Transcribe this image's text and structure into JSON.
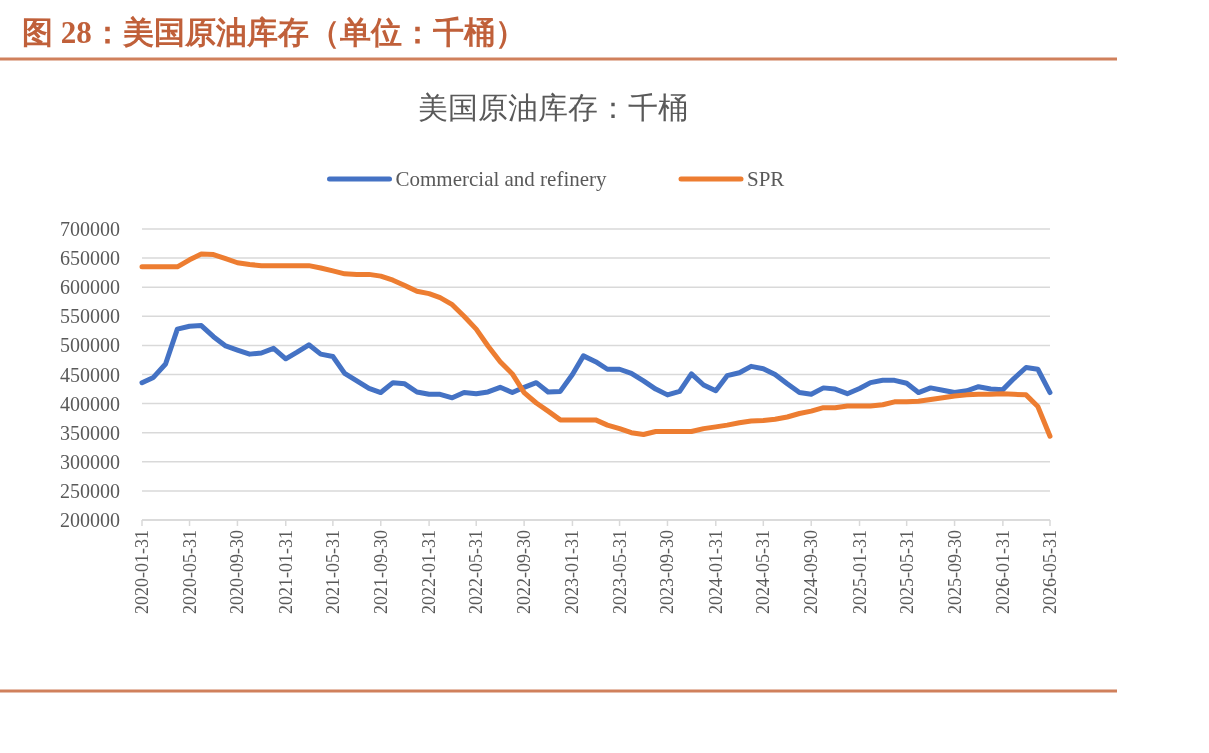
{
  "chart_data": {
    "type": "line",
    "title": "图 28：美国原油库存（单位：千桶）",
    "subtitle": "美国原油库存：千桶",
    "x": [
      "2020-01-31",
      "2020-02-29",
      "2020-03-31",
      "2020-04-30",
      "2020-05-31",
      "2020-06-30",
      "2020-07-31",
      "2020-08-31",
      "2020-09-30",
      "2020-10-31",
      "2020-11-30",
      "2020-12-31",
      "2021-01-31",
      "2021-02-28",
      "2021-03-31",
      "2021-04-30",
      "2021-05-31",
      "2021-06-30",
      "2021-07-31",
      "2021-08-31",
      "2021-09-30",
      "2021-10-31",
      "2021-11-30",
      "2021-12-31",
      "2022-01-31",
      "2022-02-28",
      "2022-03-31",
      "2022-04-30",
      "2022-05-31",
      "2022-06-30",
      "2022-07-31",
      "2022-08-31",
      "2022-09-30",
      "2022-10-31",
      "2022-11-30",
      "2022-12-31",
      "2023-01-31",
      "2023-02-28",
      "2023-03-31",
      "2023-04-30",
      "2023-05-31",
      "2023-06-30",
      "2023-07-31",
      "2023-08-31",
      "2023-09-30",
      "2023-10-31",
      "2023-11-30",
      "2023-12-31",
      "2024-01-31",
      "2024-02-29",
      "2024-03-31",
      "2024-04-30",
      "2024-05-31",
      "2024-06-30",
      "2024-07-31",
      "2024-08-31",
      "2024-09-30",
      "2024-10-31",
      "2024-11-30",
      "2024-12-31",
      "2025-01-31",
      "2025-02-28",
      "2025-03-31",
      "2025-04-30",
      "2025-05-31",
      "2025-06-30",
      "2025-07-31",
      "2025-08-31",
      "2025-09-30",
      "2025-10-31",
      "2025-11-30",
      "2025-12-31",
      "2026-01-31",
      "2026-02-28",
      "2026-03-31",
      "2026-04-30",
      "2026-05-31"
    ],
    "series": [
      {
        "name": "Commercial and refinery",
        "color": "#4472c4",
        "values": [
          436000,
          445000,
          468000,
          528000,
          533000,
          534000,
          515000,
          499000,
          492000,
          485000,
          487000,
          495000,
          477000,
          488000,
          501000,
          485000,
          481000,
          452000,
          439000,
          426000,
          419000,
          436000,
          434000,
          420000,
          416000,
          416000,
          410000,
          419000,
          417000,
          420000,
          428000,
          419000,
          428000,
          436000,
          420000,
          421000,
          450000,
          482000,
          472000,
          459000,
          459000,
          452000,
          439000,
          425000,
          415000,
          421000,
          451000,
          432000,
          422000,
          448000,
          453000,
          464000,
          460000,
          450000,
          434000,
          419000,
          416000,
          427000,
          425000,
          417000,
          426000,
          436000,
          440000,
          440000,
          435000,
          419000,
          427000,
          423000,
          419000,
          422000,
          429000,
          425000,
          424000,
          443000,
          462000,
          459000,
          419000
        ]
      },
      {
        "name": "SPR",
        "color": "#ed7d31",
        "values": [
          635000,
          635000,
          635000,
          635000,
          647000,
          657000,
          656000,
          649000,
          642000,
          639000,
          637000,
          637000,
          637000,
          637000,
          637000,
          633000,
          628000,
          623000,
          622000,
          622000,
          619000,
          612000,
          603000,
          593000,
          589000,
          582000,
          570000,
          550000,
          528000,
          499000,
          472000,
          451000,
          419000,
          401000,
          387000,
          372000,
          372000,
          372000,
          372000,
          363000,
          357000,
          350000,
          347000,
          352000,
          352000,
          352000,
          352000,
          357000,
          360000,
          363000,
          367000,
          370000,
          371000,
          373000,
          377000,
          383000,
          387000,
          393000,
          393000,
          396000,
          396000,
          396000,
          398000,
          403000,
          403000,
          404000,
          407000,
          410000,
          413000,
          415000,
          416000,
          416000,
          417000,
          416000,
          415000,
          395000,
          344000
        ]
      }
    ],
    "xlim": [
      "2020-01-31",
      "2026-05-31"
    ],
    "xticks": [
      "2020-01-31",
      "2020-05-31",
      "2020-09-30",
      "2021-01-31",
      "2021-05-31",
      "2021-09-30",
      "2022-01-31",
      "2022-05-31",
      "2022-09-30",
      "2023-01-31",
      "2023-05-31",
      "2023-09-30",
      "2024-01-31",
      "2024-05-31",
      "2024-09-30",
      "2025-01-31",
      "2025-05-31",
      "2025-09-30",
      "2026-01-31",
      "2026-05-31"
    ],
    "ylim": [
      200000,
      700000
    ],
    "yticks": [
      200000,
      250000,
      300000,
      350000,
      400000,
      450000,
      500000,
      550000,
      600000,
      650000,
      700000
    ],
    "grid": "y",
    "legend": "top"
  }
}
